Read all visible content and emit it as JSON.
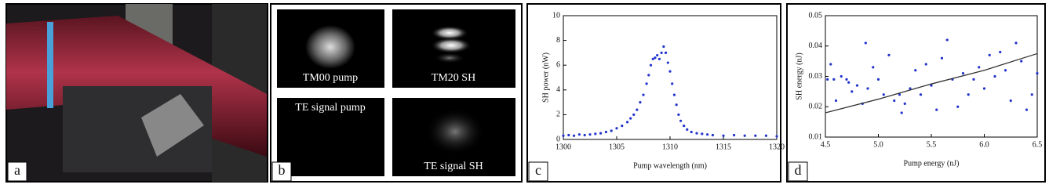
{
  "panels": [
    {
      "label": "a"
    },
    {
      "label": "b",
      "images": [
        "TM00 pump",
        "TM20 SH",
        "TE signal pump",
        "TE signal SH"
      ]
    }
  ],
  "chart_data": [
    {
      "type": "scatter",
      "panel_label": "c",
      "xlabel": "Pump wavelength (nm)",
      "ylabel": "SH power (nW)",
      "color": "#2233cc",
      "xlim": [
        1300,
        1320
      ],
      "xticks": [
        1300,
        1305,
        1310,
        1315,
        1320
      ],
      "ylim": [
        0,
        10
      ],
      "yticks": [
        0,
        2,
        4,
        6,
        8,
        10
      ],
      "x": [
        1300,
        1300.5,
        1301,
        1301.5,
        1302,
        1302.5,
        1303,
        1303.5,
        1304,
        1304.5,
        1305,
        1305.5,
        1306,
        1306.3,
        1306.6,
        1306.9,
        1307.2,
        1307.5,
        1307.8,
        1308,
        1308.2,
        1308.4,
        1308.6,
        1308.8,
        1309,
        1309.2,
        1309.4,
        1309.6,
        1309.8,
        1310,
        1310.2,
        1310.4,
        1310.6,
        1310.8,
        1311,
        1311.3,
        1311.6,
        1312,
        1312.5,
        1313,
        1313.5,
        1314,
        1315,
        1316,
        1317,
        1318,
        1319,
        1320
      ],
      "values": [
        0.3,
        0.35,
        0.3,
        0.4,
        0.35,
        0.4,
        0.45,
        0.5,
        0.6,
        0.7,
        0.9,
        1.1,
        1.4,
        1.7,
        2.0,
        2.4,
        3.0,
        3.6,
        4.5,
        5.2,
        6.0,
        6.5,
        6.6,
        6.8,
        6.5,
        7.0,
        7.5,
        7.0,
        6.2,
        5.5,
        4.5,
        3.6,
        2.8,
        2.0,
        1.5,
        1.1,
        0.8,
        0.6,
        0.5,
        0.45,
        0.4,
        0.35,
        0.3,
        0.35,
        0.3,
        0.3,
        0.3,
        0.25
      ]
    },
    {
      "type": "scatter",
      "panel_label": "d",
      "xlabel": "Pump energy (nJ)",
      "ylabel": "SH energy (nJ)",
      "color": "#2233cc",
      "xlim": [
        4.5,
        6.5
      ],
      "xticks": [
        4.5,
        {
          "value": 5,
          "label": "5.0"
        },
        5.5,
        {
          "value": 6,
          "label": "6.0"
        },
        6.5
      ],
      "ylim": [
        0.01,
        0.05
      ],
      "yticks": [
        0.01,
        0.02,
        0.03,
        0.04,
        0.05
      ],
      "x": [
        4.52,
        4.55,
        4.58,
        4.6,
        4.65,
        4.7,
        4.72,
        4.75,
        4.8,
        4.85,
        4.88,
        4.9,
        4.95,
        5.0,
        5.05,
        5.1,
        5.15,
        5.2,
        5.22,
        5.25,
        5.3,
        5.35,
        5.4,
        5.45,
        5.5,
        5.55,
        5.6,
        5.65,
        5.7,
        5.75,
        5.8,
        5.85,
        5.9,
        5.95,
        6.0,
        6.05,
        6.1,
        6.15,
        6.2,
        6.25,
        6.3,
        6.35,
        6.4,
        6.45,
        6.5
      ],
      "values": [
        0.029,
        0.034,
        0.029,
        0.022,
        0.03,
        0.029,
        0.028,
        0.025,
        0.027,
        0.021,
        0.041,
        0.026,
        0.033,
        0.029,
        0.024,
        0.037,
        0.022,
        0.024,
        0.018,
        0.021,
        0.026,
        0.032,
        0.024,
        0.034,
        0.027,
        0.019,
        0.036,
        0.042,
        0.029,
        0.02,
        0.031,
        0.024,
        0.029,
        0.033,
        0.026,
        0.037,
        0.03,
        0.038,
        0.032,
        0.022,
        0.041,
        0.035,
        0.019,
        0.024,
        0.031
      ],
      "fit": {
        "color": "#333333",
        "x": [
          4.5,
          5,
          5.5,
          6,
          6.5
        ],
        "values": [
          0.018,
          0.0225,
          0.0275,
          0.032,
          0.0375
        ]
      }
    }
  ]
}
